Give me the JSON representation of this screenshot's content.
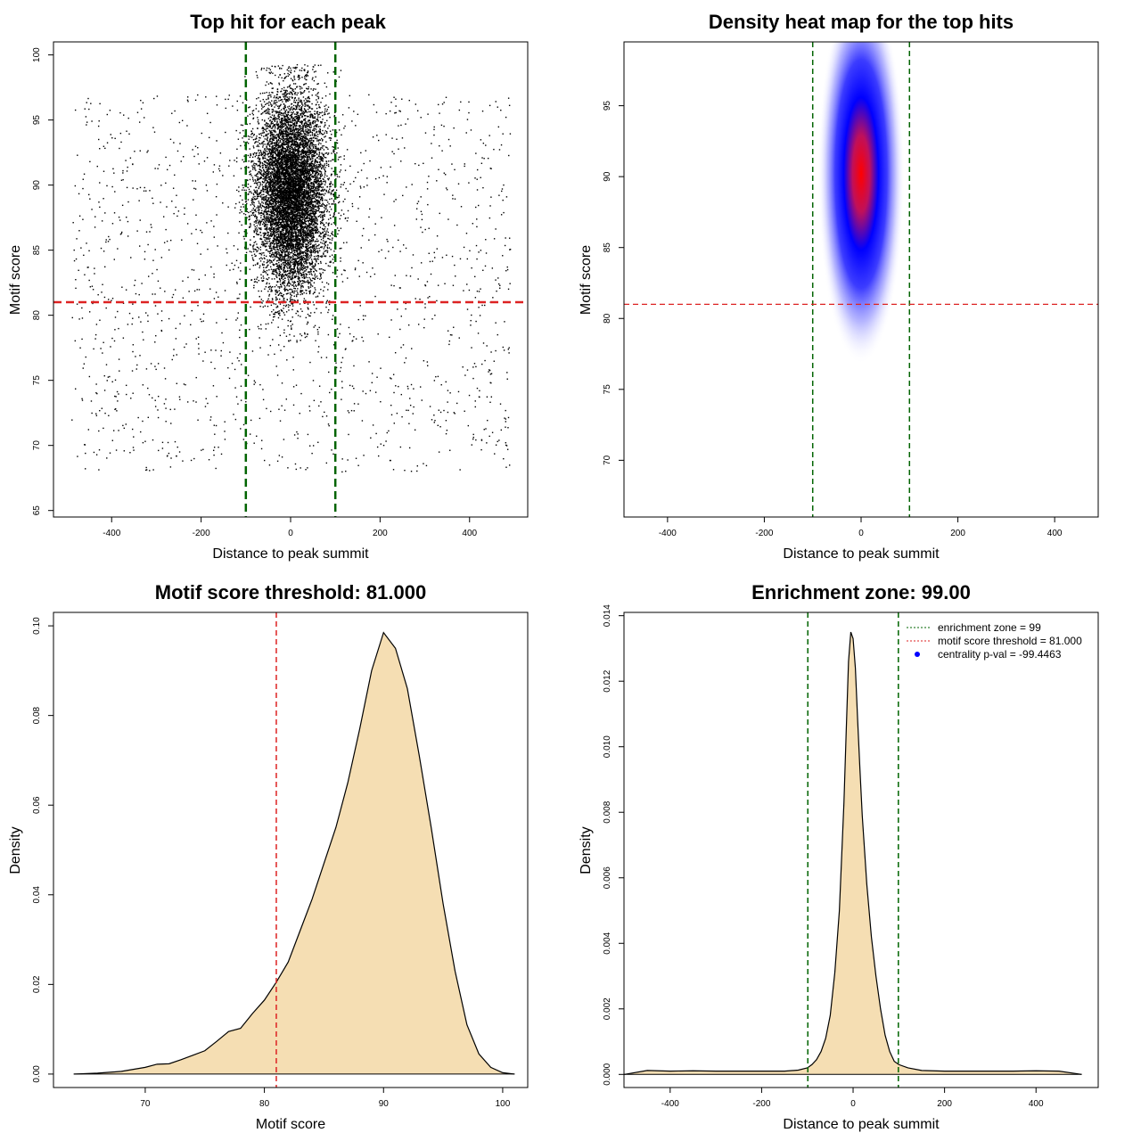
{
  "chart_data": [
    {
      "id": "scatter",
      "type": "scatter",
      "title": "Top hit for each peak",
      "xlabel": "Distance to peak summit",
      "ylabel": "Motif score",
      "xlim": [
        -530,
        530
      ],
      "ylim": [
        64.5,
        101
      ],
      "xticks": [
        -400,
        -200,
        0,
        200,
        400
      ],
      "yticks": [
        65,
        70,
        75,
        80,
        85,
        90,
        95,
        100
      ],
      "ytick_rotated": true,
      "vlines": {
        "values": [
          -100,
          100
        ],
        "color": "#006400",
        "style": "dashed-thick"
      },
      "hlines": {
        "values": [
          81
        ],
        "color": "#dd2222",
        "style": "dashed-thick"
      },
      "point_color": "#000000",
      "distribution": {
        "central_points": 9000,
        "central_x_mean": 0,
        "central_x_sd": 40,
        "central_y_mean": 89.5,
        "central_y_sd": 3.8,
        "background_points": 1400,
        "background_x_range": [
          -490,
          490
        ],
        "background_y_range": [
          68,
          97
        ]
      }
    },
    {
      "id": "heatmap",
      "type": "heatmap",
      "title": "Density heat map for the top hits",
      "xlabel": "Distance to peak summit",
      "ylabel": "Motif score",
      "xlim": [
        -490,
        490
      ],
      "ylim": [
        66,
        99.5
      ],
      "xticks": [
        -400,
        -200,
        0,
        200,
        400
      ],
      "yticks": [
        70,
        75,
        80,
        85,
        90,
        95
      ],
      "ytick_rotated": true,
      "vlines": {
        "values": [
          -100,
          100
        ],
        "color": "#006400",
        "style": "dashed"
      },
      "hlines": {
        "values": [
          81
        ],
        "color": "#dd2222",
        "style": "dashed"
      },
      "colors": [
        "#ffffff",
        "#0000ff",
        "#ff0000"
      ],
      "peak": {
        "x": 0,
        "y": 90.2,
        "x_sd": 28,
        "y_sd": 4.2
      }
    },
    {
      "id": "score-density",
      "type": "area",
      "title": "Motif score threshold: 81.000",
      "xlabel": "Motif score",
      "ylabel": "Density",
      "xlim": [
        62.3,
        102.1
      ],
      "ylim": [
        -0.003,
        0.103
      ],
      "xticks": [
        70,
        80,
        90,
        100
      ],
      "yticks": [
        0.0,
        0.02,
        0.04,
        0.06,
        0.08,
        0.1
      ],
      "ytick_labels": [
        "0.00",
        "0.02",
        "0.04",
        "0.06",
        "0.08",
        "0.10"
      ],
      "ytick_rotated": true,
      "fill_color": "#f5deb3",
      "vlines": {
        "values": [
          81
        ],
        "color": "#dd2222",
        "style": "dashed"
      },
      "x": [
        64,
        66,
        68,
        70,
        71,
        72,
        73,
        74,
        75,
        76,
        77,
        78,
        79,
        80,
        81,
        82,
        83,
        84,
        85,
        86,
        87,
        88,
        89,
        90,
        91,
        92,
        93,
        94,
        95,
        96,
        97,
        98,
        99,
        100,
        101
      ],
      "y": [
        0.0,
        0.0002,
        0.0006,
        0.0015,
        0.0022,
        0.0023,
        0.0032,
        0.0042,
        0.0052,
        0.0073,
        0.0095,
        0.0102,
        0.0135,
        0.0165,
        0.0205,
        0.025,
        0.032,
        0.039,
        0.047,
        0.055,
        0.065,
        0.077,
        0.09,
        0.0985,
        0.095,
        0.086,
        0.071,
        0.055,
        0.038,
        0.023,
        0.011,
        0.0045,
        0.0015,
        0.0003,
        0.0
      ]
    },
    {
      "id": "distance-density",
      "type": "area",
      "title": "Enrichment zone: 99.00",
      "xlabel": "Distance to peak summit",
      "ylabel": "Density",
      "xlim": [
        -501,
        536
      ],
      "ylim": [
        -0.0004,
        0.0141
      ],
      "xticks": [
        -400,
        -200,
        0,
        200,
        400
      ],
      "yticks": [
        0.0,
        0.002,
        0.004,
        0.006,
        0.008,
        0.01,
        0.012,
        0.014
      ],
      "ytick_labels": [
        "0.000",
        "0.002",
        "0.004",
        "0.006",
        "0.008",
        "0.010",
        "0.012",
        "0.014"
      ],
      "ytick_rotated": true,
      "fill_color": "#f5deb3",
      "vlines": {
        "values": [
          -99,
          99
        ],
        "color": "#006400",
        "style": "dashed"
      },
      "x": [
        -500,
        -450,
        -400,
        -350,
        -300,
        -250,
        -200,
        -150,
        -120,
        -100,
        -90,
        -80,
        -70,
        -60,
        -50,
        -40,
        -30,
        -20,
        -15,
        -10,
        -5,
        0,
        5,
        10,
        15,
        20,
        30,
        40,
        50,
        60,
        70,
        80,
        90,
        100,
        120,
        150,
        200,
        250,
        300,
        350,
        400,
        450,
        500
      ],
      "y": [
        0.0,
        0.00012,
        0.0001,
        0.00011,
        0.0001,
        0.0001,
        0.0001,
        0.0001,
        0.00013,
        0.0002,
        0.0003,
        0.00045,
        0.0007,
        0.0011,
        0.0018,
        0.0031,
        0.005,
        0.0083,
        0.0105,
        0.0126,
        0.0135,
        0.0133,
        0.0124,
        0.0108,
        0.0093,
        0.0079,
        0.0058,
        0.0042,
        0.003,
        0.002,
        0.0012,
        0.0007,
        0.0004,
        0.0003,
        0.0002,
        0.00012,
        0.0001,
        0.0001,
        0.0001,
        0.0001,
        0.00011,
        0.0001,
        0.0
      ],
      "legend": {
        "position": "top-right",
        "entries": [
          {
            "label": "enrichment zone = 99",
            "color": "#006400",
            "style": "dotted-line"
          },
          {
            "label": "motif score threshold = 81.000",
            "color": "#dd2222",
            "style": "dotted-line"
          },
          {
            "label": "centrality p-val = -99.4463",
            "color": "#0000ff",
            "style": "point"
          }
        ]
      }
    }
  ]
}
